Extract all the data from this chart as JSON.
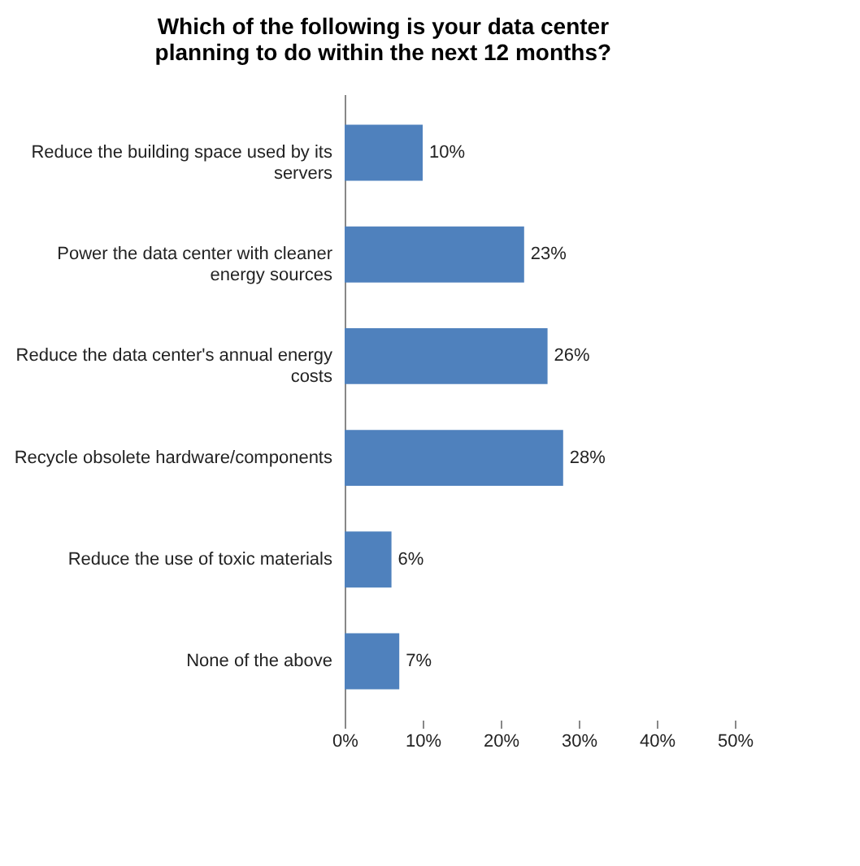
{
  "chart_data": {
    "type": "bar",
    "orientation": "horizontal",
    "title": "Which of the following is your data center planning to do within the next 12 months?",
    "categories": [
      "Reduce the building space used by its servers",
      "Power the data center with cleaner energy sources",
      "Reduce the data center's annual energy costs",
      "Recycle obsolete hardware/components",
      "Reduce the use of toxic materials",
      "None of the above"
    ],
    "values": [
      10,
      23,
      26,
      28,
      6,
      7
    ],
    "value_labels": [
      "10%",
      "23%",
      "26%",
      "28%",
      "6%",
      "7%"
    ],
    "color": "#4f81bd",
    "xlim": [
      0,
      50
    ],
    "xticks": [
      {
        "value": 0,
        "label": "0%"
      },
      {
        "value": 10,
        "label": "10%"
      },
      {
        "value": 20,
        "label": "20%"
      },
      {
        "value": 30,
        "label": "30%"
      },
      {
        "value": 40,
        "label": "40%"
      },
      {
        "value": 50,
        "label": "50%"
      }
    ],
    "grid": false
  }
}
